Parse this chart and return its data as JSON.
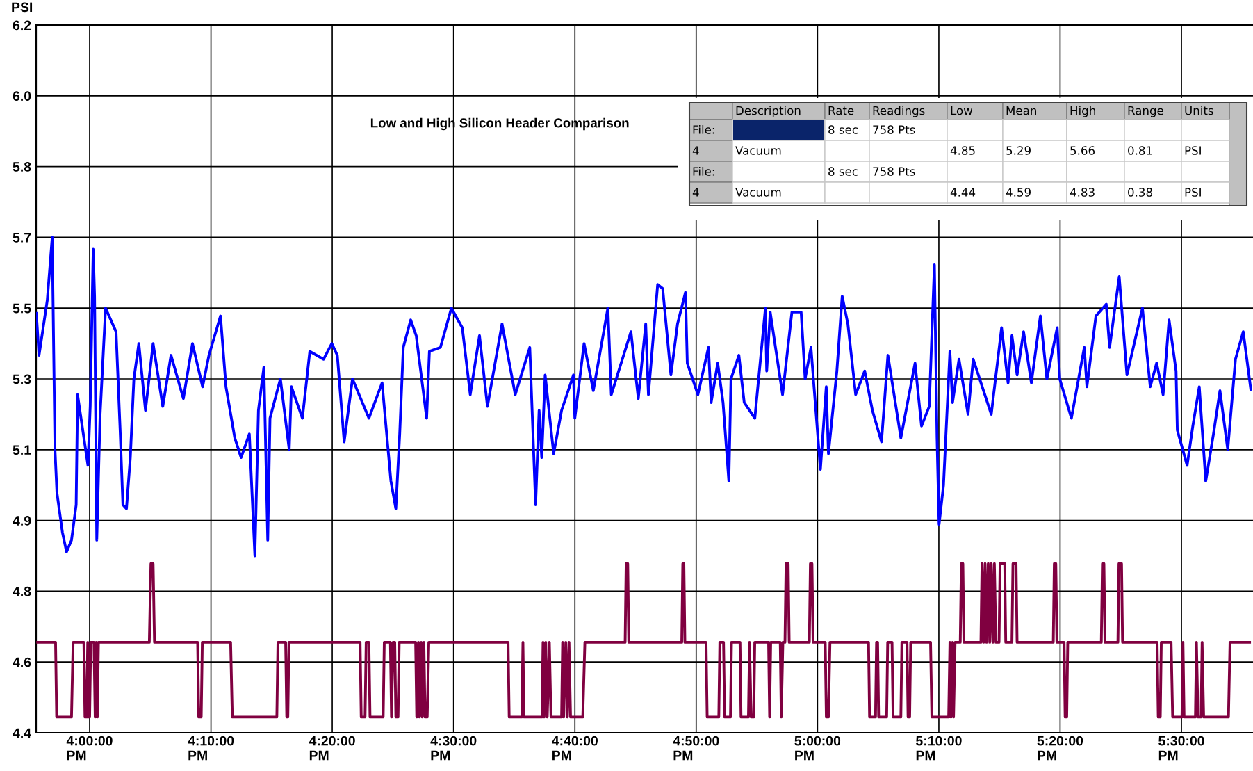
{
  "chart_data": {
    "type": "line",
    "title": "Low and High Silicon Header Comparison",
    "ylabel": "PSI",
    "xlim": [
      15.9265,
      17.5983
    ],
    "ylim": [
      4.4,
      6.2
    ],
    "xticks": [
      {
        "value": 16,
        "label": "4:00:00 PM"
      },
      {
        "value": 16.1667,
        "label": "4:10:00 PM"
      },
      {
        "value": 16.3333,
        "label": "4:20:00 PM"
      },
      {
        "value": 16.5,
        "label": "4:30:00 PM"
      },
      {
        "value": 16.6667,
        "label": "4:40:00 PM"
      },
      {
        "value": 16.8333,
        "label": "4:50:00 PM"
      },
      {
        "value": 17,
        "label": "5:00:00 PM"
      },
      {
        "value": 17.1667,
        "label": "5:10:00 PM"
      },
      {
        "value": 17.3333,
        "label": "5:20:00 PM"
      },
      {
        "value": 17.5,
        "label": "5:30:00 PM"
      }
    ],
    "yticks": [
      6.2,
      {
        "value": 6.02,
        "label": "6.0"
      },
      {
        "value": 5.84,
        "label": "5.8"
      },
      {
        "value": 5.66,
        "label": "5.7"
      },
      {
        "value": 5.48,
        "label": "5.5"
      },
      5.3,
      {
        "value": 5.12,
        "label": "5.1"
      },
      {
        "value": 4.94,
        "label": "4.9"
      },
      {
        "value": 4.76,
        "label": "4.8"
      },
      {
        "value": 4.58,
        "label": "4.6"
      },
      4.4
    ],
    "grid": true,
    "annotations": [
      "Description",
      "Rate",
      "Readings",
      "Low",
      "Mean",
      "High",
      "Range",
      "Units",
      "File:",
      "8 sec",
      "758 Pts",
      "4",
      "Vacuum",
      "4.85",
      "5.29",
      "5.66",
      "0.81",
      "PSI",
      "File:",
      "8 sec",
      "758 Pts",
      "4",
      "Vacuum",
      "4.44",
      "4.59",
      "4.83",
      "0.38",
      "PSI"
    ],
    "series": [
      {
        "color": "#0000ff",
        "x": [
          15.9267,
          15.9305,
          15.9418,
          15.9486,
          15.9524,
          15.9551,
          15.9626,
          15.9683,
          15.9751,
          15.9815,
          15.9834,
          15.9977,
          16.0008,
          16.0049,
          16.0068,
          16.0098,
          16.0144,
          16.0219,
          16.0363,
          16.0419,
          16.0457,
          16.0506,
          16.0559,
          16.0608,
          16.0676,
          16.0767,
          16.0872,
          16.1005,
          16.1118,
          16.1288,
          16.1413,
          16.1552,
          16.1639,
          16.1798,
          16.1873,
          16.1994,
          16.2081,
          16.2194,
          16.227,
          16.2319,
          16.2394,
          16.2447,
          16.2478,
          16.2621,
          16.2742,
          16.2772,
          16.2923,
          16.3025,
          16.3214,
          16.3327,
          16.3403,
          16.3497,
          16.3611,
          16.3837,
          16.4018,
          16.4139,
          16.4207,
          16.426,
          16.4309,
          16.4411,
          16.4487,
          16.463,
          16.4668,
          16.4819,
          16.497,
          16.512,
          16.5229,
          16.5356,
          16.5465,
          16.5666,
          16.5847,
          16.6047,
          16.6127,
          16.6175,
          16.6211,
          16.6258,
          16.6375,
          16.6484,
          16.6647,
          16.6666,
          16.6793,
          16.692,
          16.712,
          16.7167,
          16.7437,
          16.7538,
          16.764,
          16.7677,
          16.7804,
          16.7873,
          16.7986,
          16.8077,
          16.8186,
          16.8211,
          16.8357,
          16.8502,
          16.8539,
          16.8629,
          16.8702,
          16.8782,
          16.8811,
          16.892,
          16.8993,
          16.9139,
          16.9284,
          16.9302,
          16.935,
          16.952,
          16.9648,
          16.9775,
          16.983,
          16.991,
          17.004,
          17.012,
          17.015,
          17.0266,
          17.0339,
          17.0417,
          17.0524,
          17.0648,
          17.0754,
          17.0879,
          17.0967,
          17.1145,
          17.134,
          17.1429,
          17.1535,
          17.1606,
          17.1642,
          17.167,
          17.1731,
          17.1819,
          17.1855,
          17.1944,
          17.2068,
          17.2139,
          17.2387,
          17.2529,
          17.2618,
          17.2671,
          17.2742,
          17.2831,
          17.2938,
          17.3062,
          17.3151,
          17.3293,
          17.3328,
          17.3488,
          17.3665,
          17.3701,
          17.3825,
          17.3967,
          17.4013,
          17.4145,
          17.4251,
          17.4464,
          17.4571,
          17.4659,
          17.4748,
          17.483,
          17.4926,
          17.4943,
          17.5078,
          17.5156,
          17.5245,
          17.5334,
          17.544,
          17.5529,
          17.5636,
          17.5742,
          17.5849,
          17.5955
        ],
        "values": [
          5.47,
          5.36,
          5.5,
          5.66,
          5.12,
          5.01,
          4.91,
          4.86,
          4.89,
          4.98,
          5.26,
          5.08,
          5.23,
          5.63,
          5.51,
          4.89,
          5.21,
          5.48,
          5.42,
          5.17,
          4.98,
          4.97,
          5.1,
          5.3,
          5.39,
          5.22,
          5.39,
          5.23,
          5.36,
          5.25,
          5.39,
          5.28,
          5.36,
          5.46,
          5.28,
          5.15,
          5.1,
          5.16,
          4.85,
          5.22,
          5.33,
          4.89,
          5.2,
          5.3,
          5.12,
          5.28,
          5.2,
          5.37,
          5.35,
          5.39,
          5.36,
          5.14,
          5.3,
          5.2,
          5.29,
          5.04,
          4.97,
          5.16,
          5.38,
          5.45,
          5.41,
          5.2,
          5.37,
          5.38,
          5.48,
          5.43,
          5.26,
          5.41,
          5.23,
          5.44,
          5.26,
          5.38,
          4.98,
          5.22,
          5.1,
          5.31,
          5.11,
          5.22,
          5.31,
          5.2,
          5.39,
          5.27,
          5.48,
          5.26,
          5.42,
          5.25,
          5.44,
          5.26,
          5.54,
          5.53,
          5.31,
          5.44,
          5.52,
          5.34,
          5.26,
          5.38,
          5.24,
          5.34,
          5.24,
          5.04,
          5.3,
          5.36,
          5.24,
          5.2,
          5.48,
          5.32,
          5.47,
          5.26,
          5.47,
          5.47,
          5.3,
          5.38,
          5.07,
          5.28,
          5.11,
          5.32,
          5.51,
          5.44,
          5.26,
          5.32,
          5.22,
          5.14,
          5.36,
          5.15,
          5.34,
          5.18,
          5.23,
          5.59,
          5.15,
          4.93,
          5.03,
          5.37,
          5.24,
          5.35,
          5.21,
          5.35,
          5.21,
          5.43,
          5.29,
          5.41,
          5.31,
          5.42,
          5.29,
          5.46,
          5.3,
          5.43,
          5.3,
          5.2,
          5.38,
          5.28,
          5.46,
          5.49,
          5.38,
          5.56,
          5.31,
          5.48,
          5.28,
          5.34,
          5.26,
          5.45,
          5.32,
          5.17,
          5.08,
          5.18,
          5.28,
          5.04,
          5.16,
          5.27,
          5.12,
          5.35,
          5.42,
          5.27
        ]
      },
      {
        "color": "#800040",
        "x": [
          15.9267,
          15.9532,
          15.9547,
          15.9751,
          15.9773,
          15.9921,
          15.9936,
          15.9958,
          15.9974,
          15.9985,
          16.0,
          16.0015,
          16.006,
          16.0076,
          16.0091,
          16.0106,
          16.0121,
          16.082,
          16.0842,
          16.0872,
          16.0891,
          16.1484,
          16.1499,
          16.1533,
          16.1548,
          16.1937,
          16.196,
          16.2572,
          16.2587,
          16.2693,
          16.2708,
          16.2723,
          16.2738,
          16.3716,
          16.3731,
          16.3784,
          16.3799,
          16.3837,
          16.3852,
          16.4033,
          16.4048,
          16.4132,
          16.4147,
          16.4169,
          16.4192,
          16.4207,
          16.4237,
          16.4253,
          16.4479,
          16.4494,
          16.4517,
          16.4532,
          16.4555,
          16.457,
          16.4592,
          16.4608,
          16.4638,
          16.466,
          16.5749,
          16.5764,
          16.5938,
          16.5953,
          16.5967,
          16.6215,
          16.6229,
          16.6244,
          16.6266,
          16.6287,
          16.6316,
          16.6338,
          16.6484,
          16.6498,
          16.6513,
          16.6542,
          16.6564,
          16.6586,
          16.6607,
          16.6775,
          16.6804,
          16.7357,
          16.7371,
          16.7393,
          16.7407,
          16.8135,
          16.8149,
          16.8164,
          16.8178,
          16.8469,
          16.8484,
          16.8644,
          16.8658,
          16.8709,
          16.8724,
          16.8804,
          16.8818,
          16.8935,
          16.8949,
          16.9051,
          16.9066,
          16.9088,
          16.9124,
          16.9138,
          16.9328,
          16.9342,
          16.9357,
          16.9488,
          16.9502,
          16.9524,
          16.9553,
          16.9568,
          16.9597,
          16.9611,
          16.9888,
          16.9902,
          16.9924,
          16.9939,
          17.0106,
          17.0121,
          17.015,
          17.0171,
          17.0701,
          17.0715,
          17.0797,
          17.0811,
          17.0826,
          17.084,
          17.095,
          17.0964,
          17.1024,
          17.1038,
          17.1145,
          17.1159,
          17.123,
          17.1244,
          17.1266,
          17.128,
          17.1553,
          17.1571,
          17.1802,
          17.1819,
          17.1834,
          17.1855,
          17.1869,
          17.189,
          17.1961,
          17.1976,
          17.1997,
          17.2011,
          17.2245,
          17.226,
          17.2281,
          17.2302,
          17.2323,
          17.2345,
          17.2366,
          17.2387,
          17.2409,
          17.243,
          17.2451,
          17.2494,
          17.2508,
          17.2572,
          17.2586,
          17.2671,
          17.2685,
          17.2728,
          17.2742,
          17.3239,
          17.3253,
          17.3274,
          17.3289,
          17.3388,
          17.3402,
          17.3424,
          17.3438,
          17.3899,
          17.3914,
          17.3935,
          17.3949,
          17.4127,
          17.4141,
          17.4177,
          17.4191,
          17.4666,
          17.4681,
          17.4709,
          17.4723,
          17.4858,
          17.4879,
          17.5007,
          17.5021,
          17.5036,
          17.5192,
          17.5206,
          17.5227,
          17.527,
          17.5284,
          17.5305,
          17.5646,
          17.5667,
          17.5955
        ],
        "values": [
          4.63,
          4.63,
          4.44,
          4.44,
          4.63,
          4.63,
          4.44,
          4.44,
          4.63,
          4.44,
          4.44,
          4.63,
          4.63,
          4.44,
          4.63,
          4.44,
          4.63,
          4.63,
          4.83,
          4.83,
          4.63,
          4.63,
          4.44,
          4.44,
          4.63,
          4.63,
          4.44,
          4.44,
          4.63,
          4.63,
          4.44,
          4.44,
          4.63,
          4.63,
          4.44,
          4.44,
          4.63,
          4.63,
          4.44,
          4.44,
          4.63,
          4.63,
          4.44,
          4.63,
          4.63,
          4.44,
          4.44,
          4.63,
          4.63,
          4.44,
          4.63,
          4.44,
          4.63,
          4.44,
          4.63,
          4.44,
          4.44,
          4.63,
          4.63,
          4.44,
          4.44,
          4.63,
          4.44,
          4.44,
          4.63,
          4.44,
          4.63,
          4.44,
          4.63,
          4.44,
          4.44,
          4.63,
          4.44,
          4.63,
          4.44,
          4.63,
          4.44,
          4.44,
          4.63,
          4.63,
          4.83,
          4.83,
          4.63,
          4.63,
          4.83,
          4.83,
          4.63,
          4.63,
          4.44,
          4.44,
          4.63,
          4.63,
          4.44,
          4.44,
          4.63,
          4.63,
          4.44,
          4.44,
          4.63,
          4.44,
          4.44,
          4.63,
          4.63,
          4.44,
          4.63,
          4.63,
          4.44,
          4.63,
          4.63,
          4.83,
          4.83,
          4.63,
          4.63,
          4.83,
          4.83,
          4.63,
          4.63,
          4.44,
          4.44,
          4.63,
          4.63,
          4.44,
          4.44,
          4.63,
          4.63,
          4.44,
          4.44,
          4.63,
          4.63,
          4.44,
          4.44,
          4.63,
          4.63,
          4.44,
          4.44,
          4.63,
          4.63,
          4.44,
          4.44,
          4.63,
          4.44,
          4.63,
          4.44,
          4.63,
          4.63,
          4.83,
          4.83,
          4.63,
          4.63,
          4.83,
          4.63,
          4.83,
          4.63,
          4.83,
          4.63,
          4.83,
          4.63,
          4.83,
          4.63,
          4.63,
          4.83,
          4.83,
          4.63,
          4.63,
          4.83,
          4.83,
          4.63,
          4.63,
          4.83,
          4.83,
          4.63,
          4.63,
          4.44,
          4.44,
          4.63,
          4.63,
          4.83,
          4.83,
          4.63,
          4.63,
          4.83,
          4.83,
          4.63,
          4.63,
          4.44,
          4.44,
          4.63,
          4.63,
          4.44,
          4.44,
          4.63,
          4.44,
          4.44,
          4.63,
          4.44,
          4.44,
          4.63,
          4.44,
          4.44,
          4.63,
          4.63
        ]
      }
    ]
  }
}
